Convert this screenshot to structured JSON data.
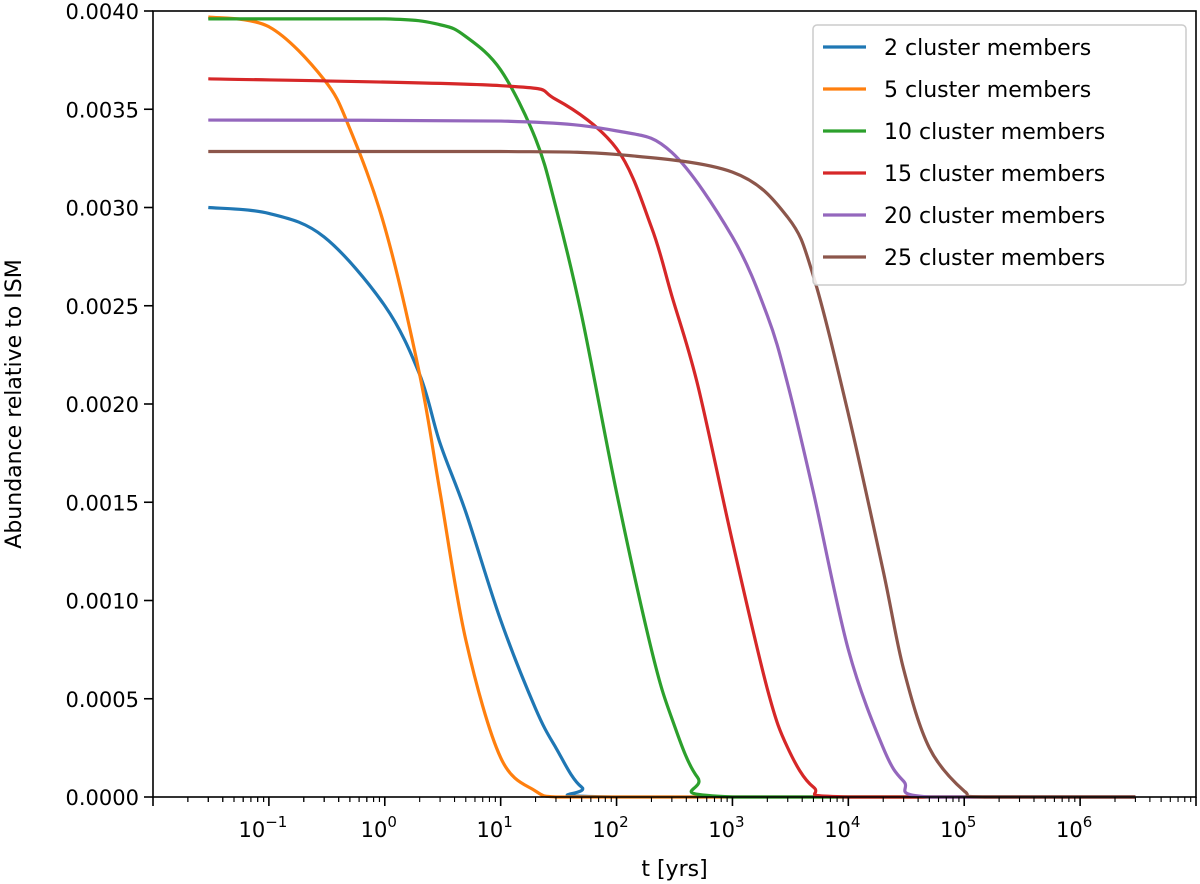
{
  "chart_data": {
    "type": "line",
    "title": "",
    "xlabel": "t [yrs]",
    "ylabel": "Abundance relative to ISM",
    "xscale": "log",
    "xlim": [
      0.01,
      10000000
    ],
    "ylim": [
      0,
      0.004
    ],
    "grid": false,
    "legend_position": "top-right",
    "y_ticks": [
      "0.0000",
      "0.0005",
      "0.0010",
      "0.0015",
      "0.0020",
      "0.0025",
      "0.0030",
      "0.0035",
      "0.0040"
    ],
    "x_ticks": [
      {
        "base": "10",
        "exp": "−1"
      },
      {
        "base": "10",
        "exp": "0"
      },
      {
        "base": "10",
        "exp": "1"
      },
      {
        "base": "10",
        "exp": "2"
      },
      {
        "base": "10",
        "exp": "3"
      },
      {
        "base": "10",
        "exp": "4"
      },
      {
        "base": "10",
        "exp": "5"
      },
      {
        "base": "10",
        "exp": "6"
      }
    ],
    "series": [
      {
        "name": "2 cluster members",
        "color": "#1f77b4",
        "x": [
          0.03,
          0.1,
          0.3,
          1,
          2,
          3,
          5,
          10,
          20,
          30,
          50,
          100,
          3000000
        ],
        "y": [
          0.003,
          0.00297,
          0.00285,
          0.0025,
          0.00215,
          0.0018,
          0.00145,
          0.0009,
          0.00045,
          0.00025,
          5e-05,
          0.0,
          0.0
        ]
      },
      {
        "name": "5 cluster members",
        "color": "#ff7f0e",
        "x": [
          0.03,
          0.1,
          0.3,
          0.5,
          1,
          2,
          3,
          5,
          10,
          20,
          30,
          100,
          3000000
        ],
        "y": [
          0.00397,
          0.00392,
          0.00365,
          0.0034,
          0.0029,
          0.00215,
          0.00155,
          0.0008,
          0.0002,
          3e-05,
          0.0,
          0.0,
          0.0
        ]
      },
      {
        "name": "10 cluster members",
        "color": "#2ca02c",
        "x": [
          0.03,
          1,
          3,
          5,
          10,
          20,
          30,
          50,
          100,
          200,
          300,
          500,
          1000,
          3000000
        ],
        "y": [
          0.00396,
          0.00396,
          0.00393,
          0.00387,
          0.0037,
          0.00335,
          0.003,
          0.00245,
          0.00155,
          0.00075,
          0.0004,
          0.0001,
          0.0,
          0.0
        ]
      },
      {
        "name": "15 cluster members",
        "color": "#d62728",
        "x": [
          0.03,
          10,
          30,
          100,
          200,
          300,
          500,
          1000,
          2000,
          3000,
          5000,
          10000,
          3000000
        ],
        "y": [
          0.003655,
          0.00362,
          0.00355,
          0.0033,
          0.0029,
          0.00255,
          0.0021,
          0.0013,
          0.00055,
          0.00025,
          5e-05,
          0.0,
          0.0
        ]
      },
      {
        "name": "20 cluster members",
        "color": "#9467bd",
        "x": [
          0.03,
          10,
          100,
          300,
          1000,
          2000,
          3000,
          5000,
          10000,
          20000,
          30000,
          50000,
          3000000
        ],
        "y": [
          0.003445,
          0.00344,
          0.00339,
          0.00328,
          0.00285,
          0.00245,
          0.0021,
          0.00155,
          0.00075,
          0.00025,
          8e-05,
          0.0,
          0.0
        ]
      },
      {
        "name": "25 cluster members",
        "color": "#8c564b",
        "x": [
          0.03,
          10,
          100,
          1000,
          3000,
          5000,
          10000,
          20000,
          30000,
          50000,
          100000,
          150000,
          3000000
        ],
        "y": [
          0.003285,
          0.003285,
          0.00327,
          0.00318,
          0.00295,
          0.00265,
          0.00195,
          0.00115,
          0.00065,
          0.00025,
          3e-05,
          0.0,
          0.0
        ]
      }
    ]
  }
}
